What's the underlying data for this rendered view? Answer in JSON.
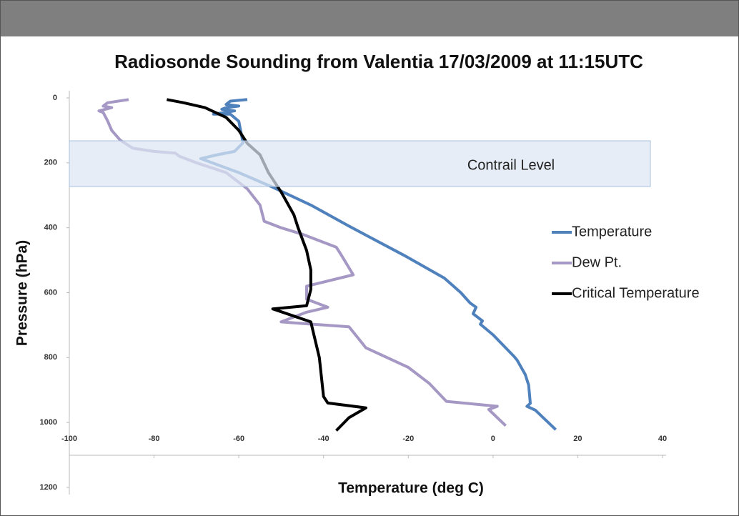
{
  "chart_data": {
    "type": "line",
    "title": "Radiosonde Sounding from Valentia 17/03/2009 at 11:15UTC",
    "x_label": "Temperature (deg C)",
    "y_label": "Pressure (hPa)",
    "annotation": "Contrail Level",
    "xlim": [
      -100,
      40
    ],
    "xticks": [
      -100,
      -80,
      -60,
      -40,
      -20,
      0,
      20,
      40
    ],
    "ylim": [
      0,
      1200
    ],
    "yticks": [
      0,
      200,
      400,
      600,
      800,
      1000,
      1200
    ],
    "y_inverted": true,
    "grid": false,
    "legend": "right",
    "series": [
      {
        "name": "Temperature",
        "color": "#4f81bd",
        "x": [
          -58,
          -62,
          -63,
          -60,
          -63,
          -64,
          -61,
          -66,
          -62,
          -60,
          -59,
          -61,
          -65,
          -69,
          -60,
          -52,
          -43,
          -34,
          -21,
          -11.5,
          -7.6,
          -5.4,
          -4,
          -4.7,
          -2.5,
          -3,
          0,
          5,
          5.7,
          7.6,
          8.4,
          8.8,
          8,
          10,
          14.8
        ],
        "values": [
          5,
          10,
          20,
          25,
          30,
          35,
          40,
          50,
          50,
          72,
          138,
          165,
          175,
          187,
          230,
          275,
          330,
          395,
          485,
          555,
          600,
          632,
          645,
          665,
          687,
          697,
          730,
          797,
          808,
          852,
          885,
          941,
          950,
          962,
          1022
        ]
      },
      {
        "name": "Dew Pt.",
        "color": "#a598c4",
        "x": [
          -86,
          -91,
          -92,
          -90,
          -93,
          -92,
          -91,
          -90,
          -88,
          -85,
          -80,
          -75,
          -74,
          -70,
          -63,
          -58,
          -55,
          -54,
          -50,
          -45,
          -37,
          -36,
          -33,
          -44,
          -44,
          -39,
          -44,
          -50,
          -45,
          -34,
          -30,
          -20,
          -15,
          -11,
          1,
          -1,
          3
        ],
        "values": [
          5,
          15,
          25,
          30,
          40,
          45,
          70,
          100,
          130,
          155,
          165,
          170,
          180,
          200,
          230,
          280,
          330,
          380,
          400,
          420,
          460,
          480,
          545,
          580,
          620,
          645,
          660,
          690,
          695,
          705,
          770,
          830,
          880,
          935,
          950,
          960,
          1010
        ]
      },
      {
        "name": "Critical Temperature",
        "color": "#000000",
        "x": [
          -77,
          -73,
          -68,
          -63,
          -60,
          -58,
          -55,
          -53,
          -50,
          -47,
          -46,
          -44,
          -43,
          -43,
          -44,
          -52,
          -43,
          -41,
          -40,
          -39,
          -30,
          -34,
          -37
        ],
        "values": [
          5,
          15,
          30,
          60,
          100,
          140,
          175,
          230,
          290,
          360,
          400,
          470,
          530,
          590,
          640,
          650,
          690,
          800,
          920,
          940,
          955,
          985,
          1025
        ]
      }
    ]
  }
}
